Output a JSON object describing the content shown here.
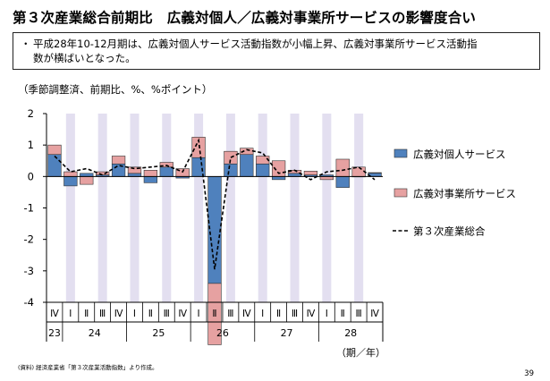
{
  "header": {
    "title": "第３次産業総合前期比　広義対個人／広義対事業所サービスの影響度合い"
  },
  "summary": {
    "bullet": "・",
    "text_line1": "平成28年10-12月期は、広義対個人サービス活動指数が小幅上昇、広義対事業所サービス活動指",
    "text_line2": "数が横ばいとなった。"
  },
  "unit_label": "（季節調整済、前期比、%、%ポイント）",
  "footer": {
    "source_note": "(資料) 経済産業省「第３次産業活動指数」より作成。",
    "page_number": "39",
    "period_unit": "（期／年）"
  },
  "colors": {
    "personal": "#4f81bd",
    "business": "#e6a1a1",
    "shade": "#e3dff0",
    "total_line": "#000000"
  },
  "chart_data": {
    "type": "bar",
    "ylim": [
      -4,
      2
    ],
    "yticks": [
      "2",
      "1",
      "0",
      "-1",
      "-2",
      "-3",
      "-4"
    ],
    "quarters": [
      "Ⅳ",
      "Ⅰ",
      "Ⅱ",
      "Ⅲ",
      "Ⅳ",
      "Ⅰ",
      "Ⅱ",
      "Ⅲ",
      "Ⅳ",
      "Ⅰ",
      "Ⅱ",
      "Ⅲ",
      "Ⅳ",
      "Ⅰ",
      "Ⅱ",
      "Ⅲ",
      "Ⅳ",
      "Ⅰ",
      "Ⅱ",
      "Ⅲ",
      "Ⅳ"
    ],
    "years": [
      {
        "label": "23",
        "start": 0,
        "end": 0
      },
      {
        "label": "24",
        "start": 1,
        "end": 4
      },
      {
        "label": "25",
        "start": 5,
        "end": 8
      },
      {
        "label": "26",
        "start": 9,
        "end": 12
      },
      {
        "label": "27",
        "start": 13,
        "end": 16
      },
      {
        "label": "28",
        "start": 17,
        "end": 20
      }
    ],
    "shaded_quarters": [
      1,
      3,
      5,
      7,
      9,
      11,
      13,
      15,
      17,
      19
    ],
    "series": [
      {
        "name": "広義対個人サービス",
        "kind": "bar",
        "color": "#4f81bd",
        "values": [
          0.7,
          -0.3,
          0.1,
          0.05,
          0.4,
          0.1,
          -0.2,
          0.3,
          -0.05,
          0.6,
          -3.4,
          0.4,
          0.7,
          0.4,
          -0.1,
          0.1,
          0.05,
          0.05,
          -0.35,
          0.0,
          0.12
        ]
      },
      {
        "name": "広義対事業所サービス",
        "kind": "bar",
        "color": "#e6a1a1",
        "values": [
          0.3,
          0.15,
          -0.25,
          0.1,
          0.25,
          0.2,
          0.2,
          0.15,
          0.25,
          0.65,
          -1.95,
          0.4,
          0.2,
          0.25,
          0.5,
          0.1,
          0.12,
          -0.1,
          0.55,
          0.3,
          0.0
        ]
      },
      {
        "name": "第３次産業総合",
        "kind": "line",
        "style": "dashed",
        "values": [
          0.65,
          0.15,
          0.25,
          0.05,
          0.35,
          0.25,
          0.3,
          0.35,
          0.15,
          1.15,
          -2.95,
          0.6,
          0.85,
          0.75,
          0.1,
          0.2,
          -0.1,
          0.15,
          0.2,
          0.3,
          -0.1
        ]
      }
    ]
  }
}
